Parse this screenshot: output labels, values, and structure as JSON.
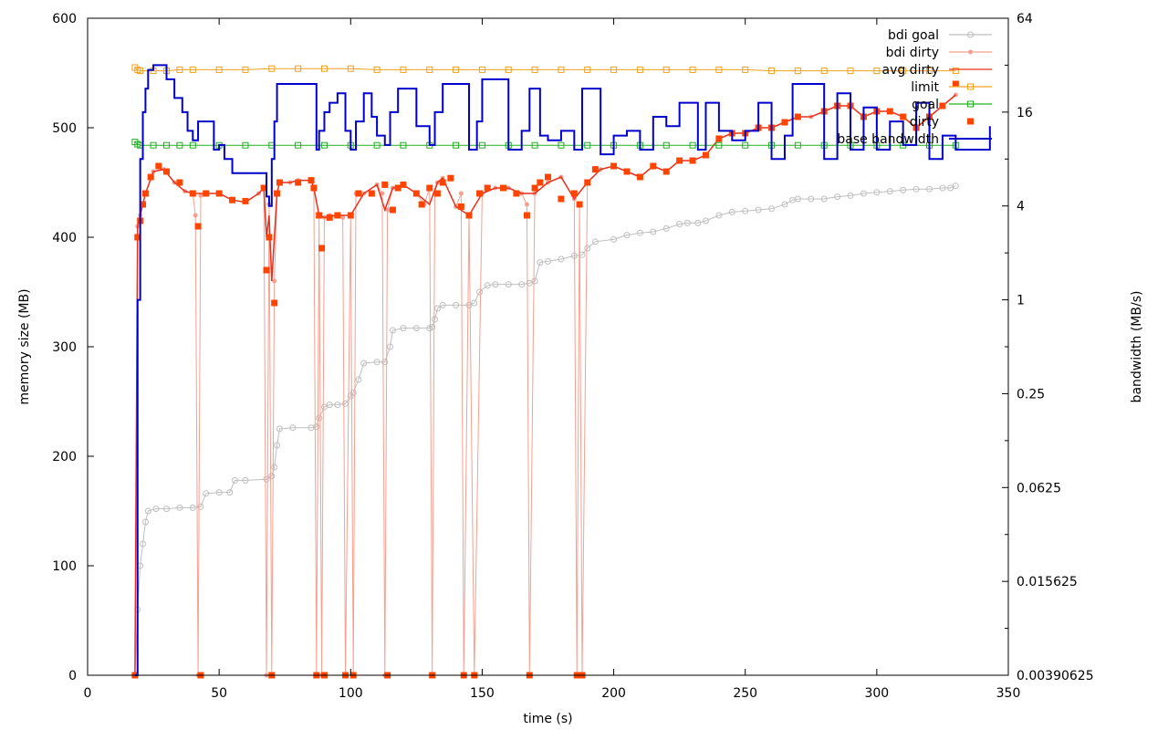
{
  "chart_data": {
    "type": "line",
    "title": "",
    "xlabel": "time (s)",
    "ylabel": "memory size (MB)",
    "y2label": "bandwidth (MB/s)",
    "xlim": [
      0,
      350
    ],
    "ylim": [
      0,
      600
    ],
    "y2lim_log2": [
      -8,
      6
    ],
    "x_ticks": [
      "0",
      "50",
      "100",
      "150",
      "200",
      "250",
      "300",
      "350"
    ],
    "y_ticks": [
      "0",
      "100",
      "200",
      "300",
      "400",
      "500",
      "600"
    ],
    "y2_ticks": [
      "0.00390625",
      "0.015625",
      "0.0625",
      "0.25",
      "1",
      "4",
      "16",
      "64"
    ],
    "grid": false,
    "legend_position": "top-right",
    "series": [
      {
        "name": "bdi goal",
        "color": "#bfbfbf",
        "axis": "left",
        "style": "line-circle",
        "x": [
          18,
          19,
          20,
          21,
          22,
          23,
          26,
          30,
          35,
          40,
          43,
          45,
          50,
          54,
          56,
          60,
          68,
          70,
          71,
          72,
          73,
          78,
          85,
          87,
          88,
          90,
          92,
          95,
          98,
          100,
          101,
          103,
          105,
          110,
          113,
          115,
          116,
          120,
          125,
          130,
          131,
          132,
          133,
          135,
          140,
          145,
          147,
          149,
          152,
          155,
          160,
          165,
          168,
          170,
          172,
          175,
          180,
          185,
          188,
          190,
          193,
          200,
          205,
          210,
          215,
          220,
          225,
          228,
          232,
          235,
          240,
          245,
          250,
          255,
          260,
          265,
          268,
          270,
          275,
          280,
          285,
          290,
          295,
          300,
          305,
          310,
          315,
          320,
          325,
          328,
          330
        ],
        "y": [
          0,
          60,
          100,
          120,
          140,
          150,
          152,
          152,
          153,
          153,
          154,
          166,
          167,
          167,
          178,
          178,
          179,
          182,
          190,
          210,
          225,
          226,
          226,
          227,
          235,
          245,
          247,
          247,
          248,
          255,
          258,
          270,
          285,
          286,
          286,
          300,
          315,
          317,
          317,
          317,
          318,
          325,
          335,
          338,
          338,
          338,
          340,
          350,
          356,
          357,
          357,
          357,
          358,
          360,
          377,
          378,
          380,
          383,
          384,
          390,
          396,
          398,
          402,
          404,
          405,
          408,
          412,
          413,
          413,
          415,
          420,
          423,
          424,
          425,
          426,
          430,
          434,
          435,
          435,
          435,
          437,
          438,
          440,
          441,
          442,
          443,
          444,
          444,
          445,
          445,
          447
        ]
      },
      {
        "name": "bdi dirty",
        "color": "#f4a090",
        "axis": "left",
        "style": "line-dot",
        "x": [
          18,
          19,
          20,
          22,
          25,
          29,
          33,
          37,
          40,
          41,
          42,
          43,
          45,
          50,
          55,
          60,
          65,
          67,
          68,
          69,
          70,
          71,
          72,
          73,
          77,
          80,
          85,
          86,
          87,
          88,
          89,
          90,
          92,
          95,
          97,
          98,
          100,
          101,
          102,
          105,
          110,
          112,
          113,
          114,
          116,
          120,
          125,
          128,
          130,
          131,
          132,
          133,
          135,
          140,
          142,
          143,
          145,
          147,
          150,
          155,
          160,
          165,
          167,
          168,
          170,
          175,
          180,
          185,
          186,
          187,
          188,
          190,
          195,
          200,
          205,
          210,
          215,
          220,
          225,
          230,
          235,
          240,
          245,
          250,
          255,
          260,
          265,
          270,
          275,
          280,
          285,
          290,
          295,
          300,
          305,
          310,
          315,
          320,
          325,
          330
        ],
        "y": [
          0,
          410,
          420,
          440,
          460,
          462,
          450,
          442,
          440,
          420,
          0,
          438,
          440,
          440,
          434,
          432,
          440,
          445,
          0,
          430,
          0,
          360,
          440,
          450,
          450,
          452,
          452,
          445,
          0,
          420,
          0,
          418,
          420,
          420,
          418,
          0,
          420,
          0,
          440,
          440,
          448,
          440,
          0,
          425,
          445,
          448,
          440,
          430,
          445,
          0,
          440,
          450,
          454,
          428,
          440,
          0,
          420,
          0,
          440,
          445,
          445,
          440,
          430,
          0,
          440,
          450,
          455,
          435,
          0,
          430,
          0,
          450,
          462,
          465,
          460,
          455,
          465,
          460,
          470,
          470,
          475,
          490,
          495,
          495,
          500,
          500,
          505,
          510,
          510,
          515,
          520,
          520,
          510,
          515,
          515,
          510,
          500,
          510,
          520,
          530
        ]
      },
      {
        "name": "avg dirty",
        "color": "#e8301c",
        "axis": "left",
        "style": "line",
        "x": [
          18,
          19,
          20,
          22,
          25,
          29,
          33,
          37,
          40,
          45,
          50,
          55,
          60,
          65,
          67,
          68,
          69,
          70,
          71,
          72,
          73,
          77,
          80,
          85,
          86,
          88,
          90,
          95,
          100,
          105,
          110,
          113,
          116,
          120,
          125,
          130,
          133,
          135,
          140,
          145,
          150,
          155,
          160,
          165,
          170,
          175,
          180,
          185,
          190,
          195,
          200,
          205,
          210,
          215,
          220,
          225,
          230,
          235,
          240,
          245,
          250,
          255,
          260,
          265,
          270,
          275,
          280,
          285,
          290,
          295,
          300,
          305,
          310,
          315,
          320,
          325,
          330
        ],
        "y": [
          0,
          410,
          420,
          440,
          460,
          462,
          450,
          442,
          440,
          440,
          440,
          434,
          432,
          440,
          445,
          400,
          420,
          360,
          400,
          440,
          450,
          450,
          452,
          452,
          445,
          420,
          418,
          420,
          420,
          440,
          448,
          425,
          445,
          448,
          440,
          430,
          450,
          454,
          428,
          420,
          440,
          445,
          445,
          440,
          440,
          450,
          455,
          435,
          450,
          462,
          465,
          460,
          455,
          465,
          460,
          470,
          470,
          475,
          490,
          495,
          495,
          500,
          500,
          505,
          510,
          510,
          515,
          520,
          520,
          510,
          515,
          515,
          510,
          500,
          510,
          520,
          530
        ]
      },
      {
        "name": "limit",
        "color": "#f0a020",
        "axis": "left",
        "style": "line-square",
        "x": [
          18,
          19,
          20,
          25,
          30,
          35,
          40,
          50,
          60,
          70,
          80,
          90,
          100,
          110,
          120,
          130,
          140,
          150,
          160,
          170,
          180,
          190,
          200,
          210,
          220,
          230,
          240,
          250,
          260,
          270,
          280,
          290,
          300,
          310,
          320,
          330
        ],
        "y": [
          555,
          553,
          552,
          552,
          552,
          553,
          553,
          553,
          553,
          554,
          554,
          554,
          554,
          553,
          553,
          553,
          553,
          553,
          553,
          553,
          553,
          553,
          553,
          553,
          553,
          553,
          553,
          553,
          552,
          552,
          552,
          552,
          552,
          552,
          552,
          552
        ]
      },
      {
        "name": "goal",
        "color": "#20b020",
        "axis": "left",
        "style": "line-square",
        "x": [
          18,
          19,
          20,
          25,
          30,
          35,
          40,
          50,
          60,
          70,
          80,
          90,
          100,
          110,
          120,
          130,
          140,
          150,
          160,
          170,
          180,
          190,
          200,
          210,
          220,
          230,
          240,
          250,
          260,
          270,
          280,
          290,
          300,
          310,
          320,
          330
        ],
        "y": [
          487,
          485,
          484,
          484,
          484,
          484,
          484,
          484,
          484,
          484,
          484,
          484,
          484,
          484,
          484,
          484,
          484,
          484,
          484,
          484,
          484,
          484,
          484,
          484,
          484,
          484,
          484,
          484,
          484,
          484,
          484,
          484,
          484,
          484,
          484,
          484
        ]
      },
      {
        "name": "dirty",
        "color": "#ff4400",
        "axis": "left",
        "style": "square",
        "x": [
          18,
          19,
          20,
          21,
          22,
          24,
          27,
          30,
          35,
          40,
          42,
          43,
          45,
          50,
          55,
          60,
          67,
          68,
          69,
          70,
          71,
          72,
          73,
          80,
          85,
          86,
          87,
          88,
          89,
          90,
          92,
          95,
          98,
          100,
          101,
          103,
          108,
          113,
          114,
          116,
          118,
          120,
          125,
          127,
          130,
          131,
          133,
          135,
          138,
          142,
          143,
          145,
          147,
          149,
          152,
          158,
          163,
          167,
          168,
          170,
          172,
          175,
          180,
          185,
          186,
          187,
          188,
          190,
          193,
          200,
          205,
          210,
          215,
          220,
          225,
          230,
          235,
          240,
          245,
          250,
          255,
          260,
          265,
          270,
          280,
          285,
          290,
          295,
          300,
          305,
          310,
          315,
          320,
          325,
          330
        ],
        "y": [
          0,
          400,
          415,
          430,
          440,
          455,
          465,
          460,
          450,
          440,
          410,
          0,
          440,
          440,
          434,
          433,
          445,
          370,
          400,
          0,
          340,
          440,
          450,
          450,
          452,
          445,
          0,
          420,
          390,
          0,
          418,
          420,
          0,
          420,
          0,
          440,
          440,
          448,
          0,
          425,
          445,
          448,
          440,
          430,
          445,
          0,
          440,
          450,
          454,
          428,
          0,
          420,
          0,
          440,
          445,
          445,
          440,
          420,
          0,
          445,
          450,
          455,
          435,
          440,
          0,
          430,
          0,
          450,
          462,
          465,
          460,
          455,
          465,
          460,
          470,
          470,
          475,
          490,
          495,
          495,
          500,
          500,
          505,
          510,
          515,
          520,
          520,
          510,
          515,
          515,
          510,
          500,
          510,
          520,
          540
        ]
      },
      {
        "name": "base bandwidth",
        "color": "#0000cc",
        "axis": "right",
        "style": "step",
        "x": [
          18,
          19,
          20,
          21,
          22,
          23,
          25,
          29,
          30,
          33,
          36,
          38,
          40,
          42,
          45,
          48,
          50,
          52,
          55,
          60,
          68,
          69,
          70,
          71,
          72,
          73,
          78,
          85,
          87,
          88,
          90,
          92,
          95,
          98,
          100,
          102,
          105,
          108,
          110,
          113,
          115,
          118,
          120,
          125,
          130,
          132,
          135,
          140,
          145,
          148,
          150,
          155,
          160,
          165,
          168,
          170,
          172,
          175,
          180,
          185,
          188,
          190,
          195,
          200,
          205,
          210,
          215,
          220,
          225,
          228,
          232,
          235,
          240,
          245,
          250,
          255,
          260,
          265,
          268,
          270,
          275,
          280,
          285,
          290,
          295,
          300,
          305,
          310,
          315,
          320,
          325,
          330,
          343
        ],
        "y_log2": [
          -8,
          0,
          3,
          4,
          4.5,
          4.9,
          5,
          5,
          4.7,
          4.3,
          4,
          3.6,
          3.4,
          3.8,
          3.8,
          3.2,
          3.3,
          3,
          2.7,
          2.7,
          2.2,
          2,
          3,
          3.8,
          4.6,
          4.6,
          4.6,
          4.6,
          3.2,
          3.6,
          4,
          4.2,
          4.4,
          3.6,
          3.2,
          3.8,
          4.4,
          3.9,
          3.5,
          3.3,
          4,
          4.5,
          4.5,
          3.7,
          3.3,
          4,
          4.6,
          4.6,
          3.2,
          3.8,
          4.7,
          4.7,
          3.2,
          3.6,
          4.5,
          4.5,
          3.5,
          3.4,
          3.6,
          3.2,
          4.5,
          4.5,
          3.1,
          3.5,
          3.6,
          3.2,
          3.9,
          3.7,
          4.2,
          4.2,
          3.2,
          4.2,
          3.6,
          3.4,
          3.6,
          4.2,
          3,
          3.5,
          4.6,
          4.6,
          4.6,
          3,
          4.4,
          3.2,
          4.1,
          3.2,
          3.8,
          3.3,
          4.2,
          3,
          3.5,
          3.2,
          3.7
        ]
      }
    ]
  }
}
